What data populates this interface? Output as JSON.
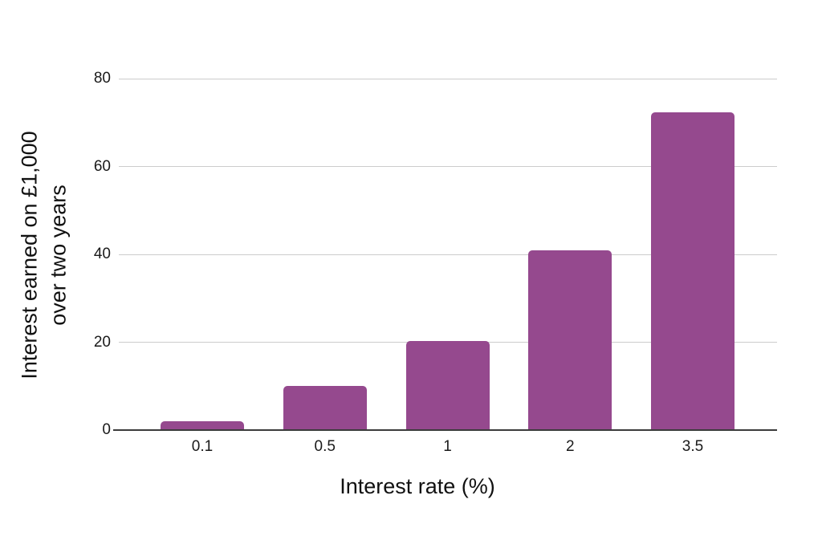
{
  "chart_data": {
    "type": "bar",
    "title": "",
    "xlabel": "Interest rate (%)",
    "ylabel": "Interest earned on £1,000 over two years",
    "ylabel_lines": [
      "Interest earned on £1,000",
      "over two years"
    ],
    "categories": [
      "0.1",
      "0.5",
      "1",
      "2",
      "3.5"
    ],
    "values": [
      2,
      10,
      20.3,
      41,
      72.4
    ],
    "yticks": [
      0,
      20,
      40,
      60,
      80
    ],
    "ylim": [
      0,
      80
    ],
    "grid": "horizontal",
    "legend": "none",
    "bar_color": "#95498E",
    "axis_color": "#3b3b3b",
    "gridline_color": "#cccccc",
    "text_color": "#111111",
    "background_color": "#ffffff"
  }
}
